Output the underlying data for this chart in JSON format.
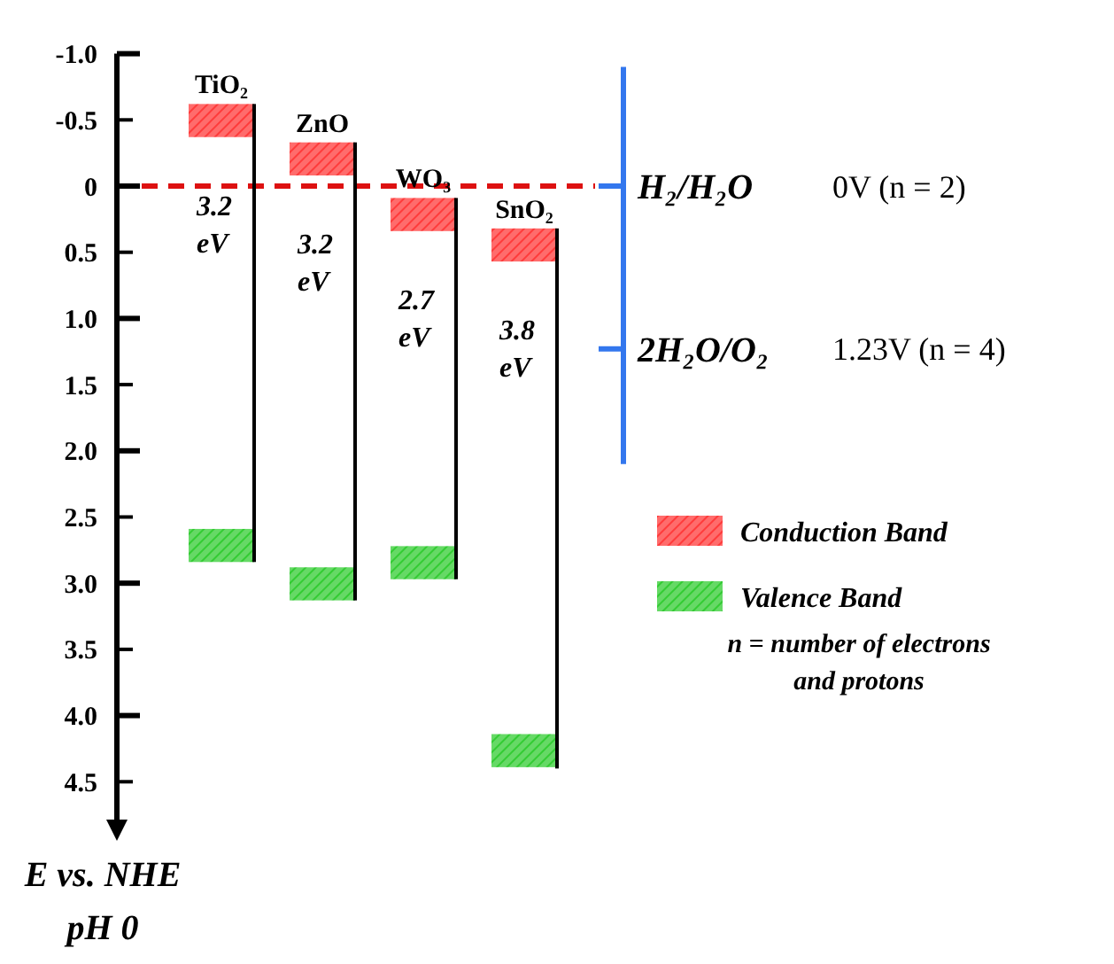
{
  "chart_data": {
    "type": "bar",
    "categories": [
      "TiO₂",
      "ZnO",
      "WO₃",
      "SnO₂"
    ],
    "series": [
      {
        "name": "Conduction Band",
        "color": "#ff3b3b",
        "base": [
          -0.62,
          -0.33,
          0.09,
          0.32
        ],
        "values": [
          0.25,
          0.25,
          0.25,
          0.25
        ]
      },
      {
        "name": "Valence Band",
        "color": "#33cc33",
        "base": [
          2.59,
          2.88,
          2.72,
          4.14
        ],
        "values": [
          0.25,
          0.25,
          0.25,
          0.25
        ]
      },
      {
        "color": "#000000",
        "base": [
          -0.62,
          -0.33,
          0.09,
          0.32
        ],
        "values": [
          3.46,
          3.46,
          2.88,
          4.08
        ]
      }
    ],
    "ylim": [
      4.8,
      -1.0
    ],
    "yticks": [
      {
        "value": -1,
        "label": "-1.0"
      },
      -0.5,
      0,
      0.5,
      {
        "value": 1,
        "label": "1.0"
      },
      1.5,
      {
        "value": 2,
        "label": "2.0"
      },
      2.5,
      {
        "value": 3,
        "label": "3.0"
      },
      3.5,
      {
        "value": 4,
        "label": "4.0"
      },
      4.5
    ],
    "ylabel": "E vs. NHE\npH 0",
    "ref_lines": [
      {
        "axis": "y",
        "value": 0,
        "label": "H₂/H₂O",
        "color": "#dd1111",
        "line_style": "dashed"
      },
      {
        "axis": "y",
        "value": 1.23,
        "label": "2H₂O/O₂",
        "color": "#3377ee",
        "line_style": "solid"
      }
    ],
    "annotations": [
      "3.2 eV",
      "3.2 eV",
      "2.7 eV",
      "3.8 eV",
      "0V (n = 2)",
      "1.23V (n = 4)",
      "n = number of electrons and protons"
    ],
    "legend": "right"
  }
}
